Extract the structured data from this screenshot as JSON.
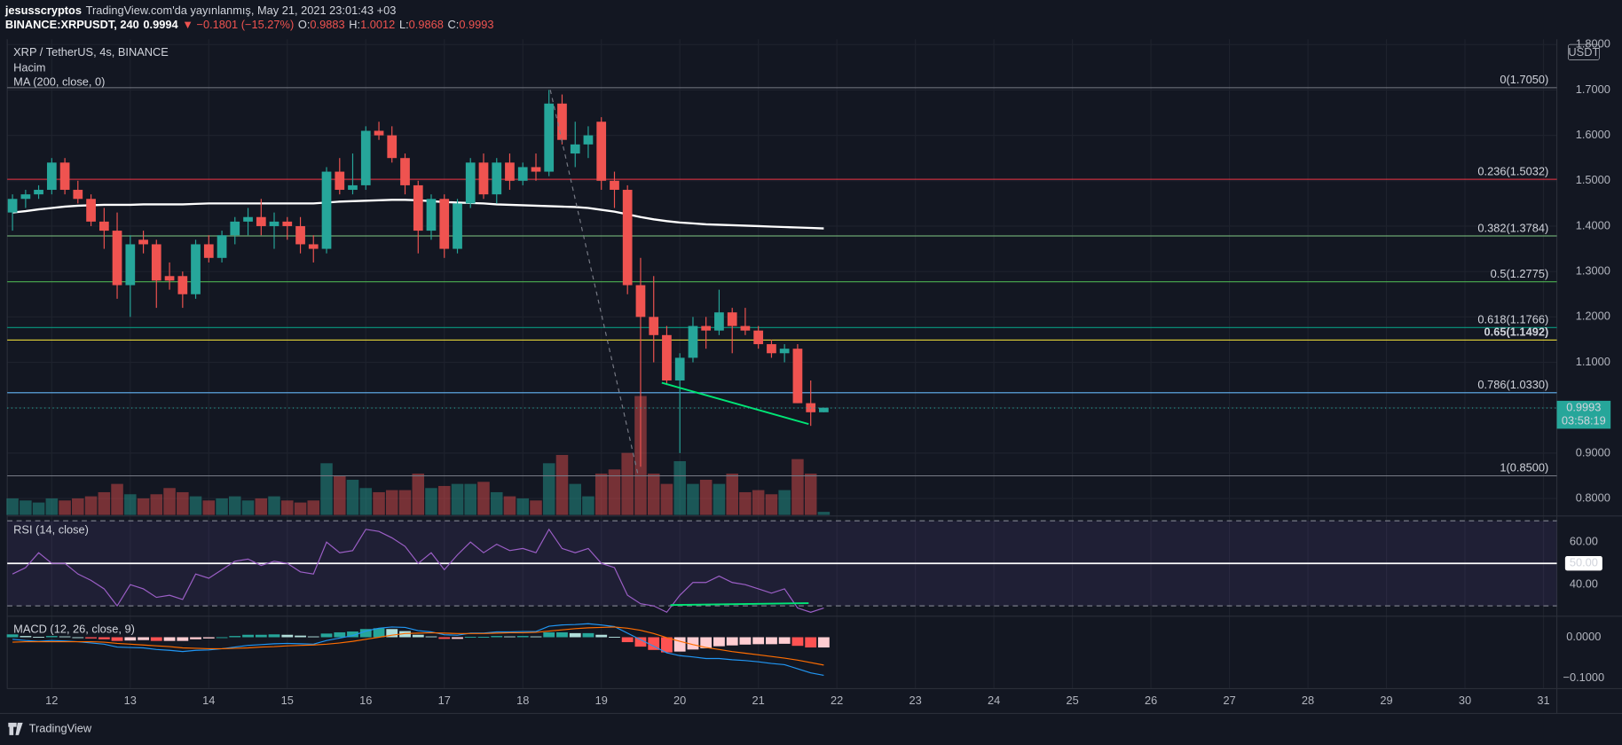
{
  "header": {
    "author": "jesusscryptos",
    "published": "TradingView.com'da yayınlanmış, May 21, 2021 23:01:43 +03",
    "symbol": "BINANCE:XRPUSDT, 240",
    "last": "0.9994",
    "change": "▼ −0.1801 (−15.27%)",
    "ohlc": [
      {
        "label": "O:",
        "value": "0.9883"
      },
      {
        "label": "H:",
        "value": "1.0012"
      },
      {
        "label": "L:",
        "value": "0.9868"
      },
      {
        "label": "C:",
        "value": "0.9993"
      }
    ]
  },
  "footer": {
    "brand": "TradingView"
  },
  "chart_data": {
    "type": "candlestick",
    "title": "XRP / TetherUS, 4s, BINANCE",
    "unit": "USDT",
    "up_color": "#26a69a",
    "down_color": "#ef5350",
    "x": [
      11.5,
      11.667,
      11.833,
      12,
      12.167,
      12.333,
      12.5,
      12.667,
      12.833,
      13,
      13.167,
      13.333,
      13.5,
      13.667,
      13.833,
      14,
      14.167,
      14.333,
      14.5,
      14.667,
      14.833,
      15,
      15.167,
      15.333,
      15.5,
      15.667,
      15.833,
      16,
      16.167,
      16.333,
      16.5,
      16.667,
      16.833,
      17,
      17.167,
      17.333,
      17.5,
      17.667,
      17.833,
      18,
      18.167,
      18.333,
      18.5,
      18.667,
      18.833,
      19,
      19.167,
      19.333,
      19.5,
      19.667,
      19.833,
      20,
      20.167,
      20.333,
      20.5,
      20.667,
      20.833,
      21,
      21.167,
      21.333,
      21.5,
      21.667,
      21.833
    ],
    "open": [
      1.43,
      1.46,
      1.47,
      1.48,
      1.54,
      1.48,
      1.46,
      1.41,
      1.39,
      1.27,
      1.37,
      1.36,
      1.29,
      1.29,
      1.25,
      1.36,
      1.33,
      1.38,
      1.41,
      1.42,
      1.4,
      1.41,
      1.4,
      1.36,
      1.35,
      1.52,
      1.48,
      1.49,
      1.61,
      1.6,
      1.55,
      1.49,
      1.39,
      1.46,
      1.35,
      1.45,
      1.54,
      1.47,
      1.54,
      1.5,
      1.53,
      1.52,
      1.67,
      1.56,
      1.58,
      1.63,
      1.5,
      1.48,
      1.27,
      1.2,
      1.16,
      1.06,
      1.11,
      1.18,
      1.17,
      1.21,
      1.18,
      1.17,
      1.14,
      1.12,
      1.13,
      1.01,
      0.99
    ],
    "high": [
      1.47,
      1.48,
      1.49,
      1.55,
      1.55,
      1.5,
      1.47,
      1.44,
      1.43,
      1.38,
      1.39,
      1.37,
      1.32,
      1.3,
      1.37,
      1.38,
      1.39,
      1.42,
      1.44,
      1.46,
      1.43,
      1.42,
      1.42,
      1.38,
      1.53,
      1.55,
      1.56,
      1.62,
      1.63,
      1.62,
      1.56,
      1.5,
      1.47,
      1.47,
      1.46,
      1.55,
      1.56,
      1.55,
      1.56,
      1.54,
      1.56,
      1.7,
      1.69,
      1.63,
      1.62,
      1.64,
      1.52,
      1.49,
      1.33,
      1.29,
      1.18,
      1.12,
      1.2,
      1.2,
      1.26,
      1.22,
      1.22,
      1.18,
      1.15,
      1.14,
      1.14,
      1.06,
      1.0
    ],
    "low": [
      1.39,
      1.44,
      1.46,
      1.47,
      1.47,
      1.45,
      1.4,
      1.35,
      1.24,
      1.2,
      1.34,
      1.22,
      1.26,
      1.22,
      1.24,
      1.32,
      1.32,
      1.36,
      1.38,
      1.38,
      1.35,
      1.37,
      1.34,
      1.32,
      1.34,
      1.47,
      1.47,
      1.48,
      1.59,
      1.54,
      1.47,
      1.34,
      1.37,
      1.33,
      1.34,
      1.44,
      1.46,
      1.45,
      1.48,
      1.49,
      1.5,
      1.51,
      1.58,
      1.53,
      1.55,
      1.48,
      1.44,
      1.25,
      0.87,
      1.1,
      1.05,
      0.9,
      1.1,
      1.13,
      1.16,
      1.12,
      1.16,
      1.13,
      1.11,
      1.1,
      1.01,
      0.96,
      0.99
    ],
    "close": [
      1.46,
      1.47,
      1.48,
      1.54,
      1.48,
      1.46,
      1.41,
      1.39,
      1.27,
      1.36,
      1.36,
      1.28,
      1.28,
      1.25,
      1.36,
      1.33,
      1.38,
      1.41,
      1.42,
      1.4,
      1.41,
      1.4,
      1.36,
      1.35,
      1.52,
      1.48,
      1.49,
      1.61,
      1.6,
      1.55,
      1.49,
      1.39,
      1.46,
      1.35,
      1.45,
      1.54,
      1.47,
      1.54,
      1.5,
      1.53,
      1.52,
      1.67,
      1.59,
      1.58,
      1.6,
      1.5,
      1.48,
      1.27,
      1.2,
      1.16,
      1.06,
      1.11,
      1.18,
      1.17,
      1.21,
      1.18,
      1.17,
      1.14,
      1.12,
      1.13,
      1.01,
      0.99,
      1.0
    ],
    "xlim": [
      11.433,
      31.17
    ],
    "xticks": [
      12,
      13,
      14,
      15,
      16,
      17,
      18,
      19,
      20,
      21,
      22,
      23,
      24,
      25,
      26,
      27,
      28,
      29,
      30,
      31
    ],
    "ylim": [
      0.7638,
      1.8116
    ],
    "yticks": [
      {
        "value": 0.8,
        "label": "0.8000"
      },
      {
        "value": 0.9,
        "label": "0.9000"
      },
      {
        "value": 1.0,
        "label": "1.0000"
      },
      {
        "value": 1.1,
        "label": "1.1000"
      },
      {
        "value": 1.2,
        "label": "1.2000"
      },
      {
        "value": 1.3,
        "label": "1.3000"
      },
      {
        "value": 1.4,
        "label": "1.4000"
      },
      {
        "value": 1.5,
        "label": "1.5000"
      },
      {
        "value": 1.6,
        "label": "1.6000"
      },
      {
        "value": 1.7,
        "label": "1.7000"
      },
      {
        "value": 1.8,
        "label": "1.8000"
      }
    ],
    "grid": true,
    "volume": {
      "name": "Hacim",
      "values": [
        16,
        14,
        12,
        16,
        14,
        16,
        18,
        22,
        30,
        20,
        16,
        20,
        26,
        22,
        18,
        14,
        16,
        18,
        14,
        16,
        18,
        14,
        12,
        14,
        50,
        38,
        34,
        26,
        22,
        24,
        24,
        40,
        26,
        28,
        30,
        30,
        32,
        22,
        18,
        16,
        14,
        50,
        58,
        30,
        18,
        40,
        44,
        60,
        115,
        40,
        30,
        52,
        30,
        34,
        30,
        40,
        22,
        24,
        20,
        24,
        54,
        40,
        3
      ]
    },
    "ma": {
      "name": "MA (200, close, 0)",
      "color": "#ffffff",
      "values": [
        1.43,
        1.433,
        1.437,
        1.44,
        1.443,
        1.445,
        1.446,
        1.447,
        1.447,
        1.447,
        1.448,
        1.448,
        1.448,
        1.448,
        1.449,
        1.45,
        1.45,
        1.45,
        1.45,
        1.45,
        1.45,
        1.45,
        1.45,
        1.45,
        1.452,
        1.454,
        1.455,
        1.456,
        1.457,
        1.458,
        1.458,
        1.457,
        1.455,
        1.453,
        1.452,
        1.451,
        1.45,
        1.448,
        1.447,
        1.446,
        1.445,
        1.444,
        1.443,
        1.442,
        1.44,
        1.436,
        1.432,
        1.426,
        1.42,
        1.415,
        1.411,
        1.408,
        1.406,
        1.404,
        1.403,
        1.402,
        1.401,
        1.4,
        1.399,
        1.398,
        1.397,
        1.396,
        1.395
      ]
    },
    "fib": [
      {
        "value": 1.705,
        "label": "0(1.7050)",
        "color": "#787b86"
      },
      {
        "value": 1.5032,
        "label": "0.236(1.5032)",
        "color": "#f23645"
      },
      {
        "value": 1.3784,
        "label": "0.382(1.3784)",
        "color": "#81c784"
      },
      {
        "value": 1.2775,
        "label": "0.5(1.2775)",
        "color": "#4caf50"
      },
      {
        "value": 1.1766,
        "label": "0.618(1.1766)",
        "color": "#089981"
      },
      {
        "value": 1.1492,
        "label": "0.65(1.1492)",
        "color": "#ffeb3b",
        "bold": true
      },
      {
        "value": 1.033,
        "label": "0.786(1.0330)",
        "color": "#64b5f6"
      },
      {
        "value": 0.85,
        "label": "1(0.8500)",
        "color": "#787b86"
      }
    ],
    "last_price": {
      "value": 0.9993,
      "label": "0.9993",
      "countdown": "03:58:19",
      "color": "#26a69a"
    },
    "trendlines": [
      {
        "color": "#00e676",
        "style": "solid",
        "x": [
          19.77,
          21.64
        ],
        "y": [
          1.055,
          0.964
        ]
      },
      {
        "color": "#787b86",
        "style": "dashed",
        "x": [
          18.35,
          19.47
        ],
        "y": [
          1.7,
          0.85
        ]
      }
    ],
    "rsi": {
      "name": "RSI (14, close)",
      "color": "#9c5fc7",
      "ylim": [
        25.6,
        71.8
      ],
      "band": [
        30,
        70
      ],
      "hline": 50,
      "yticks": [
        {
          "value": 40,
          "label": "40.00"
        },
        {
          "value": 50,
          "label": "50.00"
        },
        {
          "value": 60,
          "label": "60.00"
        }
      ],
      "values": [
        45,
        48,
        55,
        50,
        50,
        45,
        42,
        38,
        30,
        40,
        38,
        34,
        35,
        33,
        45,
        43,
        47,
        51,
        52,
        49,
        51,
        50,
        46,
        45,
        60,
        55,
        56,
        66,
        65,
        62,
        58,
        50,
        55,
        47,
        54,
        60,
        55,
        59,
        56,
        57,
        55,
        66,
        57,
        55,
        57,
        50,
        48,
        35,
        31,
        30,
        27,
        35,
        41,
        41,
        44,
        41,
        40,
        38,
        36,
        38,
        29,
        27,
        29
      ],
      "trendlines": [
        {
          "color": "#00e676",
          "x": [
            19.88,
            21.64
          ],
          "y": [
            30.4,
            31.3
          ]
        }
      ]
    },
    "macd": {
      "name": "MACD (12, 26, close, 9)",
      "ylim": [
        -0.1256,
        0.0487
      ],
      "yticks": [
        {
          "value": 0,
          "label": "0.0000"
        },
        {
          "value": -0.1,
          "label": "−0.1000"
        }
      ],
      "hist_colors": [
        "#26a69a",
        "#b2dfdb",
        "#ff5252",
        "#ffcdd2"
      ],
      "macd_color": "#2196f3",
      "signal_color": "#ff6d00",
      "macd": [
        -0.005,
        -0.008,
        -0.01,
        -0.008,
        -0.009,
        -0.011,
        -0.014,
        -0.017,
        -0.024,
        -0.025,
        -0.026,
        -0.03,
        -0.032,
        -0.035,
        -0.032,
        -0.031,
        -0.028,
        -0.024,
        -0.02,
        -0.018,
        -0.016,
        -0.015,
        -0.016,
        -0.017,
        -0.008,
        -0.002,
        0.004,
        0.015,
        0.022,
        0.025,
        0.024,
        0.016,
        0.013,
        0.006,
        0.005,
        0.01,
        0.01,
        0.013,
        0.013,
        0.014,
        0.014,
        0.027,
        0.03,
        0.031,
        0.033,
        0.03,
        0.026,
        0.01,
        -0.006,
        -0.022,
        -0.038,
        -0.045,
        -0.048,
        -0.052,
        -0.052,
        -0.055,
        -0.057,
        -0.06,
        -0.064,
        -0.067,
        -0.077,
        -0.087,
        -0.093
      ],
      "signal": [
        -0.012,
        -0.011,
        -0.011,
        -0.011,
        -0.011,
        -0.011,
        -0.011,
        -0.012,
        -0.015,
        -0.017,
        -0.019,
        -0.021,
        -0.023,
        -0.026,
        -0.027,
        -0.028,
        -0.028,
        -0.027,
        -0.026,
        -0.024,
        -0.023,
        -0.021,
        -0.02,
        -0.019,
        -0.017,
        -0.014,
        -0.01,
        -0.005,
        0.0,
        0.005,
        0.009,
        0.01,
        0.011,
        0.01,
        0.009,
        0.009,
        0.009,
        0.01,
        0.011,
        0.011,
        0.012,
        0.015,
        0.018,
        0.021,
        0.023,
        0.024,
        0.025,
        0.022,
        0.017,
        0.009,
        -0.001,
        -0.01,
        -0.018,
        -0.025,
        -0.03,
        -0.035,
        -0.039,
        -0.043,
        -0.047,
        -0.051,
        -0.056,
        -0.062,
        -0.068
      ],
      "hist": [
        0.007,
        0.003,
        0.001,
        0.003,
        0.002,
        0.0,
        -0.003,
        -0.005,
        -0.009,
        -0.008,
        -0.007,
        -0.009,
        -0.009,
        -0.009,
        -0.005,
        -0.003,
        0.0,
        0.003,
        0.006,
        0.006,
        0.007,
        0.006,
        0.004,
        0.002,
        0.009,
        0.012,
        0.014,
        0.02,
        0.022,
        0.02,
        0.015,
        0.006,
        0.002,
        -0.004,
        -0.004,
        0.001,
        0.001,
        0.003,
        0.002,
        0.003,
        0.002,
        0.012,
        0.012,
        0.01,
        0.01,
        0.006,
        0.001,
        -0.012,
        -0.023,
        -0.031,
        -0.037,
        -0.035,
        -0.03,
        -0.027,
        -0.022,
        -0.02,
        -0.018,
        -0.017,
        -0.017,
        -0.016,
        -0.021,
        -0.025,
        -0.025
      ]
    }
  }
}
